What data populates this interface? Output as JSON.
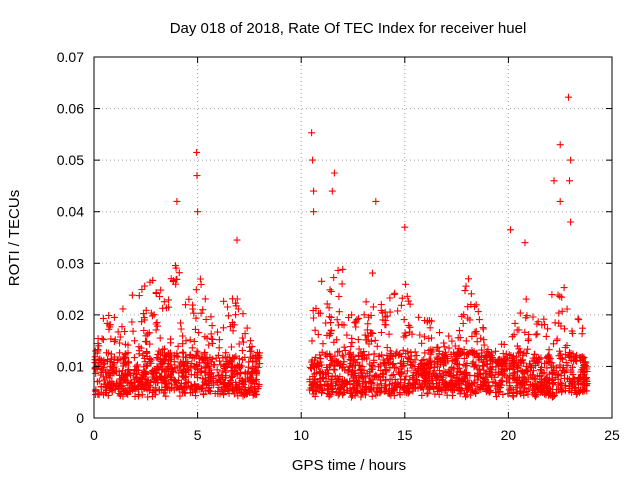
{
  "chart_data": {
    "type": "scatter",
    "title": "Day 018 of 2018, Rate Of TEC Index for receiver huel",
    "xlabel": "GPS time / hours",
    "ylabel": "ROTI / TECUs",
    "xlim": [
      0,
      24
    ],
    "ylim": [
      0,
      0.07
    ],
    "xticks": [
      "0",
      "5",
      "10",
      "15",
      "20",
      "25"
    ],
    "xtick_values": [
      0,
      5,
      10,
      15,
      20,
      25
    ],
    "yticks": [
      "0",
      "0.01",
      "0.02",
      "0.03",
      "0.04",
      "0.05",
      "0.06",
      "0.07"
    ],
    "ytick_values": [
      0,
      0.01,
      0.02,
      0.03,
      0.04,
      0.05,
      0.06,
      0.07
    ],
    "grid": true,
    "marker": "plus",
    "color": "#ff0000",
    "data_gap_hours": [
      8.1,
      10.4
    ],
    "notable_points": [
      {
        "x": 4.0,
        "y": 0.042
      },
      {
        "x": 4.95,
        "y": 0.0515
      },
      {
        "x": 4.97,
        "y": 0.047
      },
      {
        "x": 5.0,
        "y": 0.04
      },
      {
        "x": 6.9,
        "y": 0.0345
      },
      {
        "x": 10.5,
        "y": 0.0553
      },
      {
        "x": 10.55,
        "y": 0.05
      },
      {
        "x": 10.6,
        "y": 0.044
      },
      {
        "x": 10.6,
        "y": 0.04
      },
      {
        "x": 11.6,
        "y": 0.0475
      },
      {
        "x": 11.5,
        "y": 0.044
      },
      {
        "x": 13.6,
        "y": 0.042
      },
      {
        "x": 15.0,
        "y": 0.037
      },
      {
        "x": 20.1,
        "y": 0.0365
      },
      {
        "x": 20.8,
        "y": 0.034
      },
      {
        "x": 22.2,
        "y": 0.046
      },
      {
        "x": 22.5,
        "y": 0.053
      },
      {
        "x": 22.5,
        "y": 0.042
      },
      {
        "x": 22.9,
        "y": 0.0622
      },
      {
        "x": 23.0,
        "y": 0.05
      },
      {
        "x": 22.95,
        "y": 0.046
      },
      {
        "x": 23.0,
        "y": 0.038
      }
    ],
    "envelope": [
      {
        "x": 0.0,
        "y": 0.013
      },
      {
        "x": 0.5,
        "y": 0.02
      },
      {
        "x": 1.0,
        "y": 0.02
      },
      {
        "x": 1.5,
        "y": 0.022
      },
      {
        "x": 2.0,
        "y": 0.025
      },
      {
        "x": 2.5,
        "y": 0.026
      },
      {
        "x": 3.0,
        "y": 0.028
      },
      {
        "x": 3.5,
        "y": 0.025
      },
      {
        "x": 4.0,
        "y": 0.031
      },
      {
        "x": 4.5,
        "y": 0.022
      },
      {
        "x": 5.0,
        "y": 0.03
      },
      {
        "x": 5.5,
        "y": 0.022
      },
      {
        "x": 6.0,
        "y": 0.022
      },
      {
        "x": 6.5,
        "y": 0.024
      },
      {
        "x": 7.0,
        "y": 0.027
      },
      {
        "x": 7.5,
        "y": 0.016
      },
      {
        "x": 8.0,
        "y": 0.013
      },
      {
        "x": 10.4,
        "y": 0.02
      },
      {
        "x": 11.0,
        "y": 0.027
      },
      {
        "x": 11.5,
        "y": 0.03
      },
      {
        "x": 12.0,
        "y": 0.029
      },
      {
        "x": 12.5,
        "y": 0.02
      },
      {
        "x": 13.0,
        "y": 0.02
      },
      {
        "x": 13.5,
        "y": 0.03
      },
      {
        "x": 14.0,
        "y": 0.022
      },
      {
        "x": 14.5,
        "y": 0.025
      },
      {
        "x": 15.0,
        "y": 0.028
      },
      {
        "x": 15.5,
        "y": 0.022
      },
      {
        "x": 16.0,
        "y": 0.02
      },
      {
        "x": 16.5,
        "y": 0.018
      },
      {
        "x": 17.0,
        "y": 0.018
      },
      {
        "x": 17.5,
        "y": 0.015
      },
      {
        "x": 18.0,
        "y": 0.029
      },
      {
        "x": 18.5,
        "y": 0.027
      },
      {
        "x": 19.0,
        "y": 0.014
      },
      {
        "x": 19.5,
        "y": 0.012
      },
      {
        "x": 20.0,
        "y": 0.02
      },
      {
        "x": 20.5,
        "y": 0.022
      },
      {
        "x": 21.0,
        "y": 0.024
      },
      {
        "x": 21.5,
        "y": 0.019
      },
      {
        "x": 22.0,
        "y": 0.024
      },
      {
        "x": 22.5,
        "y": 0.026
      },
      {
        "x": 23.0,
        "y": 0.025
      },
      {
        "x": 23.5,
        "y": 0.019
      },
      {
        "x": 23.8,
        "y": 0.015
      }
    ],
    "baseline": {
      "min": 0.004,
      "median": 0.009
    }
  }
}
